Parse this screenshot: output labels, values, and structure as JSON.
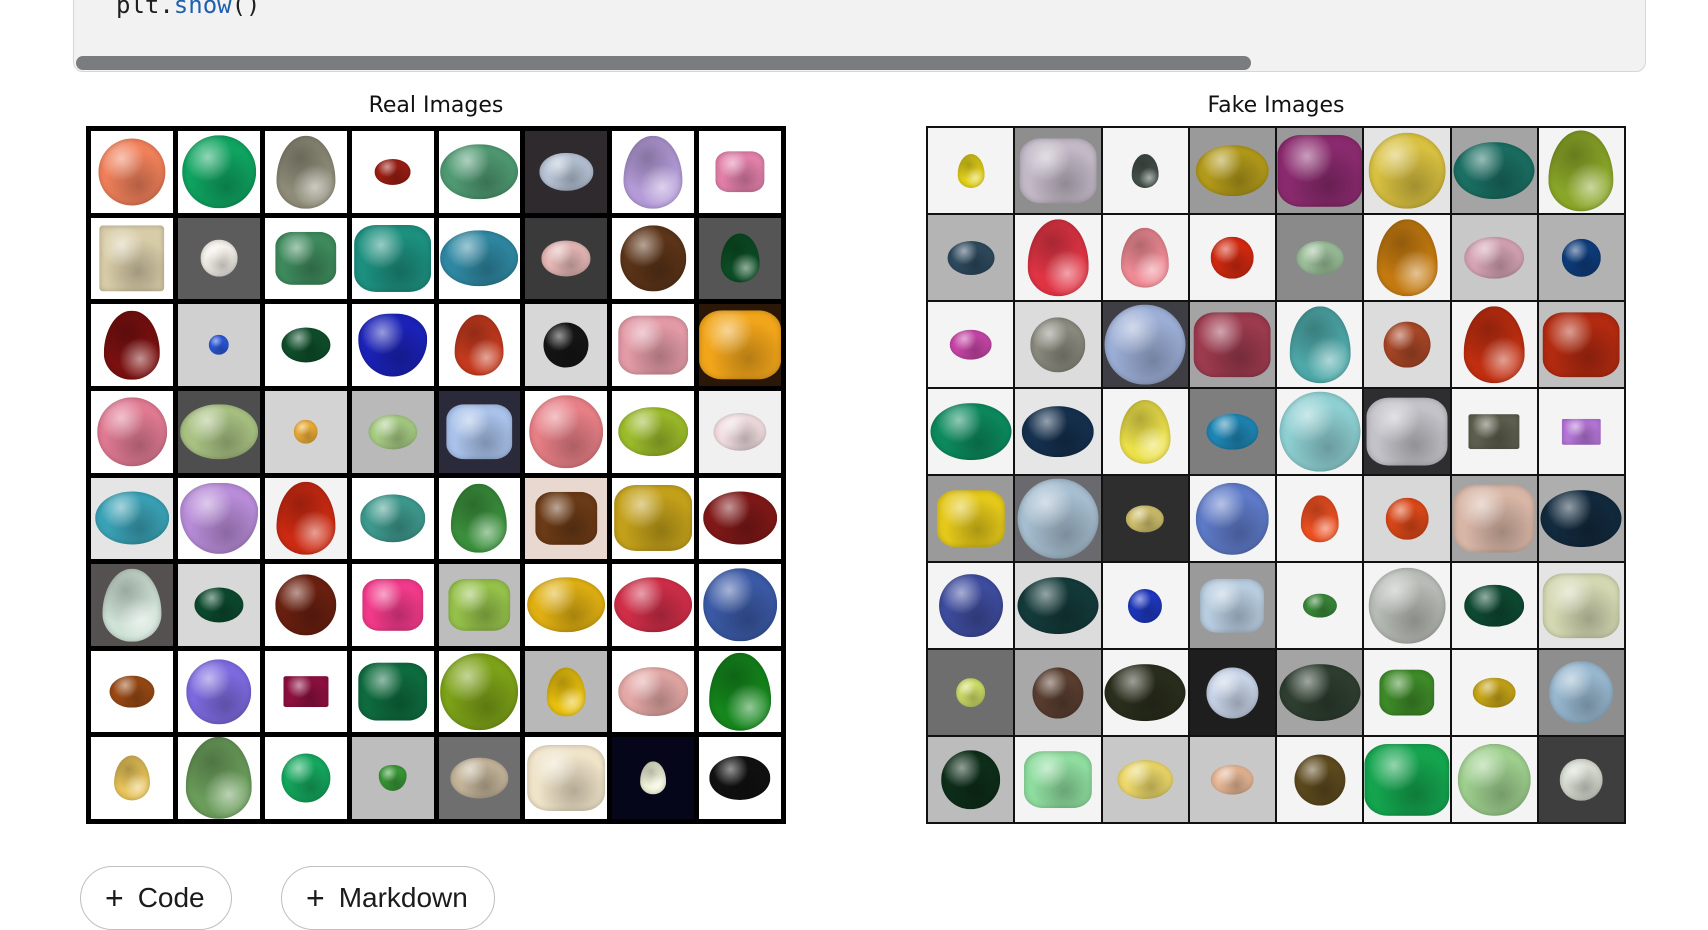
{
  "code_cell": {
    "code_prefix": "plt.",
    "code_fn": "show",
    "code_suffix": "()"
  },
  "output": {
    "real_title": "Real Images",
    "fake_title": "Fake Images"
  },
  "toolbar": {
    "add_code_label": "Code",
    "add_markdown_label": "Markdown"
  },
  "real_tiles": [
    {
      "bg": "#ffffff",
      "color": "#f0805a",
      "shape": "circle",
      "size": 0.82
    },
    {
      "bg": "#ffffff",
      "color": "#0fa460",
      "shape": "circle",
      "size": 0.9
    },
    {
      "bg": "#ffffff",
      "color": "#8e8c78",
      "shape": "drop",
      "size": 0.9
    },
    {
      "bg": "#ffffff",
      "color": "#9c1e14",
      "shape": "oval",
      "size": 0.45
    },
    {
      "bg": "#ffffff",
      "color": "#4f9a72",
      "shape": "oval",
      "size": 0.95
    },
    {
      "bg": "#2e2a2e",
      "color": "#b7c4d6",
      "shape": "oval",
      "size": 0.65
    },
    {
      "bg": "#ffffff",
      "color": "#b49bd8",
      "shape": "drop",
      "size": 0.9
    },
    {
      "bg": "#ffffff",
      "color": "#e280aa",
      "shape": "cushion",
      "size": 0.6
    },
    {
      "bg": "#ffffff",
      "color": "#d8cca8",
      "shape": "cube",
      "size": 0.8
    },
    {
      "bg": "#5c5c5c",
      "color": "#f5f1ea",
      "shape": "circle",
      "size": 0.45
    },
    {
      "bg": "#ffffff",
      "color": "#3e8a5c",
      "shape": "cushion",
      "size": 0.75
    },
    {
      "bg": "#ffffff",
      "color": "#1c8f7e",
      "shape": "cushion",
      "size": 0.95
    },
    {
      "bg": "#ffffff",
      "color": "#2f88a3",
      "shape": "oval",
      "size": 0.95
    },
    {
      "bg": "#3a3a3a",
      "color": "#e6b8b6",
      "shape": "oval",
      "size": 0.6
    },
    {
      "bg": "#ffffff",
      "color": "#5c3418",
      "shape": "circle",
      "size": 0.8
    },
    {
      "bg": "#555555",
      "color": "#0c4d24",
      "shape": "drop",
      "size": 0.6
    },
    {
      "bg": "#ffffff",
      "color": "#7a1010",
      "shape": "drop",
      "size": 0.85
    },
    {
      "bg": "#d0d0d0",
      "color": "#2d5be0",
      "shape": "circle",
      "size": 0.25
    },
    {
      "bg": "#ffffff",
      "color": "#0f4f2b",
      "shape": "oval",
      "size": 0.6
    },
    {
      "bg": "#ffffff",
      "color": "#1b22b8",
      "shape": "heart",
      "size": 0.85
    },
    {
      "bg": "#ffffff",
      "color": "#c43a1e",
      "shape": "drop",
      "size": 0.75
    },
    {
      "bg": "#d7d7d7",
      "color": "#151515",
      "shape": "circle",
      "size": 0.55
    },
    {
      "bg": "#ffffff",
      "color": "#e29aa6",
      "shape": "cushion",
      "size": 0.85
    },
    {
      "bg": "#2b1707",
      "color": "#f1a51a",
      "shape": "cushion",
      "size": 1.0
    },
    {
      "bg": "#ffffff",
      "color": "#e07a92",
      "shape": "circle",
      "size": 0.85
    },
    {
      "bg": "#4e4e4e",
      "color": "#a9c283",
      "shape": "oval",
      "size": 0.95
    },
    {
      "bg": "#d3d3d3",
      "color": "#f0b13a",
      "shape": "circle",
      "size": 0.3
    },
    {
      "bg": "#b9b9b9",
      "color": "#a8cd85",
      "shape": "oval",
      "size": 0.6
    },
    {
      "bg": "#2a2a3a",
      "color": "#a9c2ea",
      "shape": "cushion",
      "size": 0.8
    },
    {
      "bg": "#ffffff",
      "color": "#e77f86",
      "shape": "circle",
      "size": 0.9
    },
    {
      "bg": "#ffffff",
      "color": "#9cbb2a",
      "shape": "oval",
      "size": 0.85
    },
    {
      "bg": "#f0f0f0",
      "color": "#f3dfe2",
      "shape": "oval",
      "size": 0.65
    },
    {
      "bg": "#e5e5e5",
      "color": "#3aa2b6",
      "shape": "oval",
      "size": 0.9
    },
    {
      "bg": "#ffffff",
      "color": "#b88cd8",
      "shape": "heart",
      "size": 0.95
    },
    {
      "bg": "#f3f3f3",
      "color": "#cc2a12",
      "shape": "drop",
      "size": 0.9
    },
    {
      "bg": "#ffffff",
      "color": "#3e9a8e",
      "shape": "oval",
      "size": 0.8
    },
    {
      "bg": "#ffffff",
      "color": "#3a8f3c",
      "shape": "drop",
      "size": 0.85
    },
    {
      "bg": "#e9d8d0",
      "color": "#6b3a16",
      "shape": "cushion",
      "size": 0.75
    },
    {
      "bg": "#ffffff",
      "color": "#c3a01a",
      "shape": "cushion",
      "size": 0.95
    },
    {
      "bg": "#ffffff",
      "color": "#801818",
      "shape": "oval",
      "size": 0.9
    },
    {
      "bg": "#555150",
      "color": "#cfe2d6",
      "shape": "drop",
      "size": 0.9
    },
    {
      "bg": "#d8d8d8",
      "color": "#0c4a2e",
      "shape": "oval",
      "size": 0.6
    },
    {
      "bg": "#ffffff",
      "color": "#6a2010",
      "shape": "circle",
      "size": 0.75
    },
    {
      "bg": "#ffffff",
      "color": "#f23a8a",
      "shape": "cushion",
      "size": 0.75
    },
    {
      "bg": "#bdbdbd",
      "color": "#95c14a",
      "shape": "cushion",
      "size": 0.75
    },
    {
      "bg": "#ffffff",
      "color": "#e0b012",
      "shape": "oval",
      "size": 0.95
    },
    {
      "bg": "#ffffff",
      "color": "#d02e48",
      "shape": "oval",
      "size": 0.95
    },
    {
      "bg": "#ffffff",
      "color": "#3b5aa6",
      "shape": "circle",
      "size": 0.9
    },
    {
      "bg": "#ffffff",
      "color": "#9a4a14",
      "shape": "oval",
      "size": 0.55
    },
    {
      "bg": "#ffffff",
      "color": "#7e6ae0",
      "shape": "circle",
      "size": 0.8
    },
    {
      "bg": "#ffffff",
      "color": "#8e1040",
      "shape": "rect",
      "size": 0.55
    },
    {
      "bg": "#ffffff",
      "color": "#0e6b3e",
      "shape": "cushion",
      "size": 0.85
    },
    {
      "bg": "#ffffff",
      "color": "#7da218",
      "shape": "circle",
      "size": 0.95
    },
    {
      "bg": "#b8b8b8",
      "color": "#e8c00e",
      "shape": "drop",
      "size": 0.6
    },
    {
      "bg": "#ffffff",
      "color": "#e4a8a6",
      "shape": "oval",
      "size": 0.85
    },
    {
      "bg": "#ffffff",
      "color": "#14861c",
      "shape": "drop",
      "size": 0.95
    },
    {
      "bg": "#ffffff",
      "color": "#e8c45a",
      "shape": "drop",
      "size": 0.55
    },
    {
      "bg": "#ffffff",
      "color": "#6a9c5a",
      "shape": "drop",
      "size": 1.0
    },
    {
      "bg": "#ffffff",
      "color": "#14a85e",
      "shape": "circle",
      "size": 0.6
    },
    {
      "bg": "#bdbdbd",
      "color": "#3a9a38",
      "shape": "heart",
      "size": 0.35
    },
    {
      "bg": "#6f6f6f",
      "color": "#c4b59a",
      "shape": "oval",
      "size": 0.7
    },
    {
      "bg": "#ffffff",
      "color": "#efe3c8",
      "shape": "cushion",
      "size": 0.95
    },
    {
      "bg": "#06061a",
      "color": "#f2f4da",
      "shape": "drop",
      "size": 0.4
    },
    {
      "bg": "#ffffff",
      "color": "#111111",
      "shape": "oval",
      "size": 0.75
    }
  ],
  "fake_tiles": [
    {
      "bg": "#f4f4f4",
      "color": "#e3d21a",
      "shape": "drop",
      "size": 0.4
    },
    {
      "bg": "#8e8e8e",
      "color": "#c2b8c6",
      "shape": "cushion",
      "size": 0.9
    },
    {
      "bg": "#f4f4f4",
      "color": "#44504a",
      "shape": "drop",
      "size": 0.4
    },
    {
      "bg": "#9a9a9a",
      "color": "#b29a1a",
      "shape": "oval",
      "size": 0.85
    },
    {
      "bg": "#9a9a9a",
      "color": "#8a2a6e",
      "shape": "cushion",
      "size": 1.0
    },
    {
      "bg": "#e4e4e4",
      "color": "#d8c040",
      "shape": "circle",
      "size": 0.9
    },
    {
      "bg": "#a4a4a4",
      "color": "#1a6e62",
      "shape": "oval",
      "size": 0.95
    },
    {
      "bg": "#f4f4f4",
      "color": "#8aa628",
      "shape": "drop",
      "size": 0.95
    },
    {
      "bg": "#b4b4b4",
      "color": "#2e4a5e",
      "shape": "oval",
      "size": 0.55
    },
    {
      "bg": "#f4f4f4",
      "color": "#e03444",
      "shape": "drop",
      "size": 0.9
    },
    {
      "bg": "#f4f4f4",
      "color": "#ef8a94",
      "shape": "drop",
      "size": 0.7
    },
    {
      "bg": "#f4f4f4",
      "color": "#d32a10",
      "shape": "circle",
      "size": 0.5
    },
    {
      "bg": "#8a8a8a",
      "color": "#9cc09a",
      "shape": "oval",
      "size": 0.55
    },
    {
      "bg": "#f4f4f4",
      "color": "#c47a10",
      "shape": "drop",
      "size": 0.9
    },
    {
      "bg": "#c8c8c8",
      "color": "#d6a4b4",
      "shape": "oval",
      "size": 0.7
    },
    {
      "bg": "#b2b2b2",
      "color": "#0e3d7c",
      "shape": "circle",
      "size": 0.45
    },
    {
      "bg": "#f4f4f4",
      "color": "#c846a8",
      "shape": "oval",
      "size": 0.5
    },
    {
      "bg": "#dcdcdc",
      "color": "#8a8a7e",
      "shape": "circle",
      "size": 0.65
    },
    {
      "bg": "#3e3e44",
      "color": "#9caed6",
      "shape": "circle",
      "size": 0.95
    },
    {
      "bg": "#a4a4a4",
      "color": "#9c3a4e",
      "shape": "cushion",
      "size": 0.9
    },
    {
      "bg": "#f4f4f4",
      "color": "#4ea8a8",
      "shape": "drop",
      "size": 0.9
    },
    {
      "bg": "#dcdcdc",
      "color": "#a84626",
      "shape": "circle",
      "size": 0.55
    },
    {
      "bg": "#f4f4f4",
      "color": "#c02e10",
      "shape": "drop",
      "size": 0.9
    },
    {
      "bg": "#c0c0c0",
      "color": "#b22a10",
      "shape": "cushion",
      "size": 0.9
    },
    {
      "bg": "#f4f4f4",
      "color": "#0c8a5e",
      "shape": "oval",
      "size": 0.95
    },
    {
      "bg": "#e6e6e6",
      "color": "#15304e",
      "shape": "oval",
      "size": 0.85
    },
    {
      "bg": "#f4f4f4",
      "color": "#ece04a",
      "shape": "drop",
      "size": 0.75
    },
    {
      "bg": "#7e7e7e",
      "color": "#1e86b4",
      "shape": "oval",
      "size": 0.6
    },
    {
      "bg": "#f4f4f4",
      "color": "#8ecfd2",
      "shape": "circle",
      "size": 0.95
    },
    {
      "bg": "#2e2e30",
      "color": "#c2c2c8",
      "shape": "cushion",
      "size": 0.95
    },
    {
      "bg": "#f4f4f4",
      "color": "#5e5e4e",
      "shape": "rect",
      "size": 0.6
    },
    {
      "bg": "#f4f4f4",
      "color": "#b676d8",
      "shape": "rect",
      "size": 0.45
    },
    {
      "bg": "#9a9a9a",
      "color": "#e4c81a",
      "shape": "cushion",
      "size": 0.8
    },
    {
      "bg": "#6a6a6e",
      "color": "#a6bed0",
      "shape": "circle",
      "size": 0.95
    },
    {
      "bg": "#2e2e2e",
      "color": "#d2c26e",
      "shape": "oval",
      "size": 0.45
    },
    {
      "bg": "#f4f4f4",
      "color": "#5e7ac8",
      "shape": "circle",
      "size": 0.85
    },
    {
      "bg": "#f4f4f4",
      "color": "#ee5022",
      "shape": "drop",
      "size": 0.55
    },
    {
      "bg": "#d8d8d8",
      "color": "#dc4818",
      "shape": "circle",
      "size": 0.5
    },
    {
      "bg": "#a4a4a4",
      "color": "#d8b6a6",
      "shape": "cushion",
      "size": 0.95
    },
    {
      "bg": "#aeaeae",
      "color": "#122a3e",
      "shape": "oval",
      "size": 0.95
    },
    {
      "bg": "#f4f4f4",
      "color": "#3e4c9e",
      "shape": "circle",
      "size": 0.75
    },
    {
      "bg": "#dcdcdc",
      "color": "#143a3a",
      "shape": "oval",
      "size": 0.95
    },
    {
      "bg": "#f4f4f4",
      "color": "#1e38c0",
      "shape": "circle",
      "size": 0.4
    },
    {
      "bg": "#9a9a9a",
      "color": "#b8cde0",
      "shape": "cushion",
      "size": 0.75
    },
    {
      "bg": "#f4f4f4",
      "color": "#3a8a3a",
      "shape": "oval",
      "size": 0.4
    },
    {
      "bg": "#f4f4f4",
      "color": "#b8bcb6",
      "shape": "circle",
      "size": 0.9
    },
    {
      "bg": "#f4f4f4",
      "color": "#0e4a32",
      "shape": "oval",
      "size": 0.7
    },
    {
      "bg": "#e4e4e4",
      "color": "#d4d8b2",
      "shape": "cushion",
      "size": 0.9
    },
    {
      "bg": "#6e6e6e",
      "color": "#d0e06a",
      "shape": "circle",
      "size": 0.35
    },
    {
      "bg": "#a8a8a8",
      "color": "#5a3e30",
      "shape": "circle",
      "size": 0.6
    },
    {
      "bg": "#f4f4f4",
      "color": "#2a2e1c",
      "shape": "oval",
      "size": 0.95
    },
    {
      "bg": "#1e1e1e",
      "color": "#c8d4e8",
      "shape": "circle",
      "size": 0.6
    },
    {
      "bg": "#a4a4a4",
      "color": "#2e3e30",
      "shape": "oval",
      "size": 0.95
    },
    {
      "bg": "#f4f4f4",
      "color": "#3e8a28",
      "shape": "cushion",
      "size": 0.65
    },
    {
      "bg": "#f4f4f4",
      "color": "#c8a618",
      "shape": "oval",
      "size": 0.5
    },
    {
      "bg": "#8e8e8e",
      "color": "#98b8d0",
      "shape": "circle",
      "size": 0.75
    },
    {
      "bg": "#bcbcbc",
      "color": "#0e2e1a",
      "shape": "circle",
      "size": 0.7
    },
    {
      "bg": "#f4f4f4",
      "color": "#8edc9e",
      "shape": "cushion",
      "size": 0.8
    },
    {
      "bg": "#c8c8c8",
      "color": "#ecd86a",
      "shape": "oval",
      "size": 0.65
    },
    {
      "bg": "#c8c8c8",
      "color": "#e8b896",
      "shape": "oval",
      "size": 0.5
    },
    {
      "bg": "#f4f4f4",
      "color": "#5e4a1e",
      "shape": "circle",
      "size": 0.6
    },
    {
      "bg": "#f4f4f4",
      "color": "#14a44e",
      "shape": "cushion",
      "size": 1.0
    },
    {
      "bg": "#f4f4f4",
      "color": "#9ecf8e",
      "shape": "circle",
      "size": 0.85
    },
    {
      "bg": "#3e3e3e",
      "color": "#d8dcd2",
      "shape": "circle",
      "size": 0.5
    }
  ]
}
